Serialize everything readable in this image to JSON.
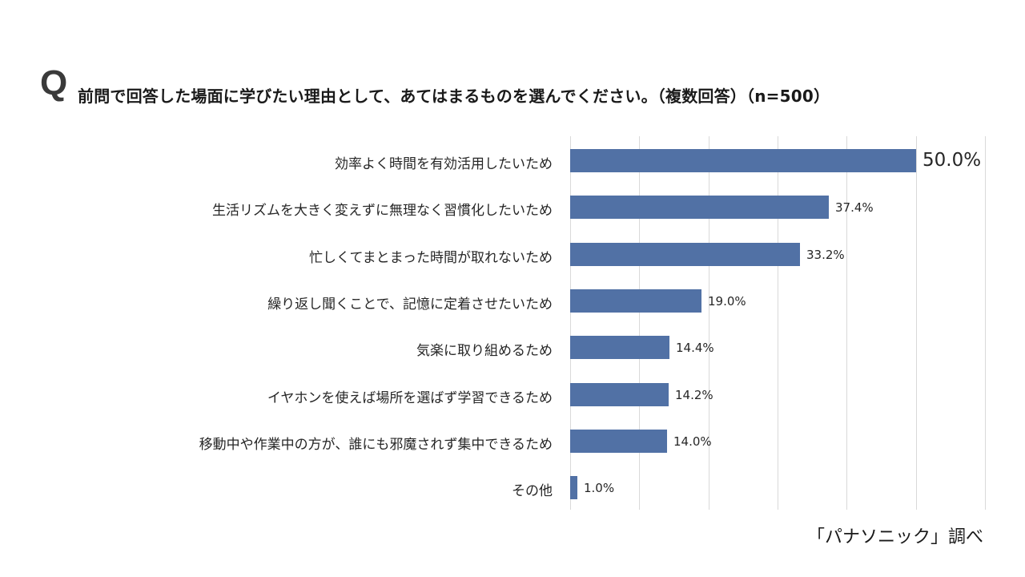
{
  "header": {
    "q_mark": "Q",
    "question": "前問で回答した場面に学びたい理由として、あてはまるものを選んでください。（複数回答）（n=500）"
  },
  "source": "「パナソニック」調べ",
  "chart_data": {
    "type": "bar",
    "orientation": "horizontal",
    "title": "前問で回答した場面に学びたい理由として、あてはまるものを選んでください。（複数回答）（n=500）",
    "xlabel": "",
    "ylabel": "",
    "xlim": [
      0,
      60
    ],
    "grid": true,
    "gridlines_at": [
      0,
      10,
      20,
      30,
      40,
      50,
      60
    ],
    "legend": null,
    "bar_color": "#5171a5",
    "categories": [
      "効率よく時間を有効活用したいため",
      "生活リズムを大きく変えずに無理なく習慣化したいため",
      "忙しくてまとまった時間が取れないため",
      "繰り返し聞くことで、記憶に定着させたいため",
      "気楽に取り組めるため",
      "イヤホンを使えば場所を選ばず学習できるため",
      "移動中や作業中の方が、誰にも邪魔されず集中できるため",
      "その他"
    ],
    "values": [
      50.0,
      37.4,
      33.2,
      19.0,
      14.4,
      14.2,
      14.0,
      1.0
    ],
    "value_labels": [
      "50.0%",
      "37.4%",
      "33.2%",
      "19.0%",
      "14.4%",
      "14.2%",
      "14.0%",
      "1.0%"
    ],
    "annotations": [
      "「パナソニック」調べ"
    ]
  }
}
